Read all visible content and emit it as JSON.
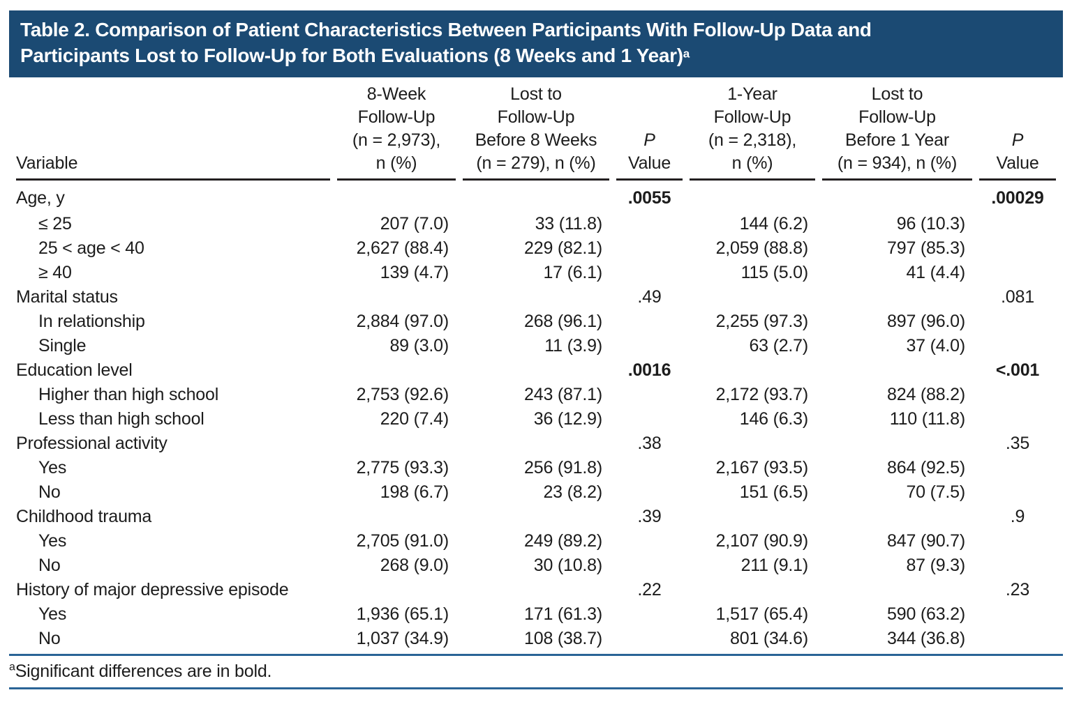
{
  "colors": {
    "header_bg": "#1b4a73",
    "rule_blue": "#2a6496",
    "rule_dark": "#231f20"
  },
  "title": {
    "text": "Table 2. Comparison of Patient Characteristics Between Participants With Follow-Up Data and\nParticipants Lost to Follow-Up for Both Evaluations (8 Weeks and 1 Year)",
    "marker": "a"
  },
  "table": {
    "columns": [
      {
        "label": "Variable"
      },
      {
        "lines": "8-Week\nFollow-Up\n(n = 2,973),\nn (%)"
      },
      {
        "lines": "Lost to\nFollow-Up\nBefore 8 Weeks\n(n = 279), n (%)"
      },
      {
        "p": "P",
        "value": "Value"
      },
      {
        "lines": "1-Year\nFollow-Up\n(n = 2,318),\nn (%)"
      },
      {
        "lines": "Lost to\nFollow-Up\nBefore 1 Year\n(n = 934), n (%)"
      },
      {
        "p": "P",
        "value": "Value"
      }
    ],
    "rows": [
      {
        "label": "Age, y",
        "indent": false,
        "c2": "",
        "c3": "",
        "p1": ".0055",
        "p1_bold": true,
        "c5": "",
        "c6": "",
        "p2": ".00029",
        "p2_bold": true
      },
      {
        "label": "≤ 25",
        "indent": true,
        "c2": "207 (7.0)",
        "c3": "33 (11.8)",
        "p1": "",
        "c5": "144 (6.2)",
        "c6": "96 (10.3)",
        "p2": ""
      },
      {
        "label": "25 < age < 40",
        "indent": true,
        "c2": "2,627 (88.4)",
        "c3": "229 (82.1)",
        "p1": "",
        "c5": "2,059 (88.8)",
        "c6": "797 (85.3)",
        "p2": ""
      },
      {
        "label": "≥ 40",
        "indent": true,
        "c2": "139 (4.7)",
        "c3": "17 (6.1)",
        "p1": "",
        "c5": "115 (5.0)",
        "c6": "41 (4.4)",
        "p2": ""
      },
      {
        "label": "Marital status",
        "indent": false,
        "c2": "",
        "c3": "",
        "p1": ".49",
        "p1_bold": false,
        "c5": "",
        "c6": "",
        "p2": ".081",
        "p2_bold": false
      },
      {
        "label": "In relationship",
        "indent": true,
        "c2": "2,884 (97.0)",
        "c3": "268 (96.1)",
        "p1": "",
        "c5": "2,255 (97.3)",
        "c6": "897 (96.0)",
        "p2": ""
      },
      {
        "label": "Single",
        "indent": true,
        "c2": "89 (3.0)",
        "c3": "11 (3.9)",
        "p1": "",
        "c5": "63 (2.7)",
        "c6": "37 (4.0)",
        "p2": ""
      },
      {
        "label": "Education level",
        "indent": false,
        "c2": "",
        "c3": "",
        "p1": ".0016",
        "p1_bold": true,
        "c5": "",
        "c6": "",
        "p2": "<.001",
        "p2_bold": true
      },
      {
        "label": "Higher than high school",
        "indent": true,
        "c2": "2,753 (92.6)",
        "c3": "243 (87.1)",
        "p1": "",
        "c5": "2,172 (93.7)",
        "c6": "824 (88.2)",
        "p2": ""
      },
      {
        "label": "Less than high school",
        "indent": true,
        "c2": "220 (7.4)",
        "c3": "36 (12.9)",
        "p1": "",
        "c5": "146 (6.3)",
        "c6": "110 (11.8)",
        "p2": ""
      },
      {
        "label": "Professional activity",
        "indent": false,
        "c2": "",
        "c3": "",
        "p1": ".38",
        "p1_bold": false,
        "c5": "",
        "c6": "",
        "p2": ".35",
        "p2_bold": false
      },
      {
        "label": "Yes",
        "indent": true,
        "c2": "2,775 (93.3)",
        "c3": "256 (91.8)",
        "p1": "",
        "c5": "2,167 (93.5)",
        "c6": "864 (92.5)",
        "p2": ""
      },
      {
        "label": "No",
        "indent": true,
        "c2": "198 (6.7)",
        "c3": "23 (8.2)",
        "p1": "",
        "c5": "151 (6.5)",
        "c6": "70 (7.5)",
        "p2": ""
      },
      {
        "label": "Childhood trauma",
        "indent": false,
        "c2": "",
        "c3": "",
        "p1": ".39",
        "p1_bold": false,
        "c5": "",
        "c6": "",
        "p2": ".9",
        "p2_bold": false
      },
      {
        "label": "Yes",
        "indent": true,
        "c2": "2,705 (91.0)",
        "c3": "249 (89.2)",
        "p1": "",
        "c5": "2,107 (90.9)",
        "c6": "847 (90.7)",
        "p2": ""
      },
      {
        "label": "No",
        "indent": true,
        "c2": "268 (9.0)",
        "c3": "30 (10.8)",
        "p1": "",
        "c5": "211 (9.1)",
        "c6": "87 (9.3)",
        "p2": ""
      },
      {
        "label": "History of major depressive episode",
        "indent": false,
        "c2": "",
        "c3": "",
        "p1": ".22",
        "p1_bold": false,
        "c5": "",
        "c6": "",
        "p2": ".23",
        "p2_bold": false
      },
      {
        "label": "Yes",
        "indent": true,
        "c2": "1,936 (65.1)",
        "c3": "171 (61.3)",
        "p1": "",
        "c5": "1,517 (65.4)",
        "c6": "590 (63.2)",
        "p2": ""
      },
      {
        "label": "No",
        "indent": true,
        "c2": "1,037 (34.9)",
        "c3": "108 (38.7)",
        "p1": "",
        "c5": "801 (34.6)",
        "c6": "344 (36.8)",
        "p2": ""
      }
    ]
  },
  "footnote": {
    "marker": "a",
    "text": "Significant differences are in bold."
  }
}
